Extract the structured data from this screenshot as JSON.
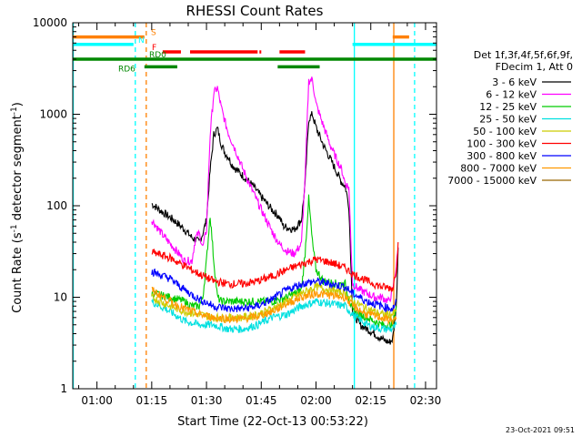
{
  "chart_data": {
    "type": "line",
    "title": "RHESSI Count Rates",
    "xlabel": "Start Time (22-Oct-13 00:53:22)",
    "ylabel_parts": [
      "Count Rate (s",
      "-1",
      " detector segment",
      "-1",
      ")"
    ],
    "y_scale": "log",
    "ylim": [
      1,
      10000
    ],
    "xlim_minutes": [
      53.37,
      153.0
    ],
    "x_ticks": [
      {
        "label": "01:00",
        "min": 60
      },
      {
        "label": "01:15",
        "min": 75
      },
      {
        "label": "01:30",
        "min": 90
      },
      {
        "label": "01:45",
        "min": 105
      },
      {
        "label": "02:00",
        "min": 120
      },
      {
        "label": "02:15",
        "min": 135
      },
      {
        "label": "02:30",
        "min": 150
      }
    ],
    "y_ticks": [
      {
        "label": "1",
        "value": 1
      },
      {
        "label": "10",
        "value": 10
      },
      {
        "label": "100",
        "value": 100
      },
      {
        "label": "1000",
        "value": 1000
      },
      {
        "label": "10000",
        "value": 10000
      }
    ],
    "legend_title": [
      "Det 1f,3f,4f,5f,6f,9f,",
      "FDecim 1, Att 0"
    ],
    "legend_position": "right",
    "timestamp": "23-Oct-2021 09:51",
    "series": [
      {
        "name": "3 - 6 keV",
        "color": "#000000",
        "points": [
          [
            75,
            105
          ],
          [
            78,
            85
          ],
          [
            81,
            70
          ],
          [
            84,
            55
          ],
          [
            86,
            45
          ],
          [
            88,
            40
          ],
          [
            89,
            50
          ],
          [
            90,
            70
          ],
          [
            91,
            240
          ],
          [
            92,
            600
          ],
          [
            93,
            700
          ],
          [
            94,
            480
          ],
          [
            95,
            380
          ],
          [
            96,
            340
          ],
          [
            97,
            280
          ],
          [
            99,
            230
          ],
          [
            101,
            195
          ],
          [
            103,
            160
          ],
          [
            105,
            125
          ],
          [
            108,
            90
          ],
          [
            110,
            75
          ],
          [
            111,
            60
          ],
          [
            114,
            55
          ],
          [
            116,
            70
          ],
          [
            117,
            170
          ],
          [
            118,
            880
          ],
          [
            119,
            1000
          ],
          [
            120,
            720
          ],
          [
            122,
            460
          ],
          [
            124,
            320
          ],
          [
            126,
            220
          ],
          [
            127,
            180
          ],
          [
            128,
            165
          ],
          [
            129,
            100
          ],
          [
            130,
            7
          ],
          [
            132,
            5
          ],
          [
            134,
            4.5
          ],
          [
            136,
            4
          ],
          [
            138,
            3.5
          ],
          [
            140,
            3.2
          ],
          [
            141,
            3.5
          ],
          [
            142,
            8
          ],
          [
            142.5,
            35
          ]
        ]
      },
      {
        "name": "6 - 12 keV",
        "color": "#ff00ff",
        "points": [
          [
            75,
            70
          ],
          [
            78,
            48
          ],
          [
            81,
            35
          ],
          [
            84,
            25
          ],
          [
            86,
            25
          ],
          [
            87,
            45
          ],
          [
            88,
            50
          ],
          [
            89,
            35
          ],
          [
            90,
            55
          ],
          [
            91,
            600
          ],
          [
            92,
            1700
          ],
          [
            93,
            1950
          ],
          [
            94,
            1200
          ],
          [
            95,
            850
          ],
          [
            96,
            620
          ],
          [
            98,
            400
          ],
          [
            100,
            250
          ],
          [
            102,
            165
          ],
          [
            104,
            110
          ],
          [
            106,
            75
          ],
          [
            108,
            52
          ],
          [
            110,
            38
          ],
          [
            112,
            32
          ],
          [
            114,
            30
          ],
          [
            116,
            38
          ],
          [
            117,
            200
          ],
          [
            118,
            2300
          ],
          [
            119,
            2400
          ],
          [
            120,
            1300
          ],
          [
            122,
            750
          ],
          [
            124,
            450
          ],
          [
            126,
            300
          ],
          [
            127,
            250
          ],
          [
            128,
            175
          ],
          [
            129,
            160
          ],
          [
            130,
            14
          ],
          [
            132,
            12
          ],
          [
            134,
            11
          ],
          [
            136,
            10
          ],
          [
            138,
            10
          ],
          [
            140,
            9
          ],
          [
            141,
            12
          ],
          [
            142,
            22
          ],
          [
            142.5,
            35
          ]
        ]
      },
      {
        "name": "12 - 25 keV",
        "color": "#00cc00",
        "points": [
          [
            75,
            11
          ],
          [
            80,
            10
          ],
          [
            84,
            9
          ],
          [
            86,
            8
          ],
          [
            88,
            8
          ],
          [
            89,
            10
          ],
          [
            90,
            25
          ],
          [
            91,
            80
          ],
          [
            92,
            25
          ],
          [
            93,
            10
          ],
          [
            94,
            9
          ],
          [
            98,
            9
          ],
          [
            100,
            9
          ],
          [
            104,
            9
          ],
          [
            108,
            9
          ],
          [
            112,
            10
          ],
          [
            116,
            12
          ],
          [
            117,
            30
          ],
          [
            118,
            120
          ],
          [
            119,
            40
          ],
          [
            120,
            20
          ],
          [
            122,
            15
          ],
          [
            126,
            14
          ],
          [
            128,
            14
          ],
          [
            130,
            7
          ],
          [
            134,
            6
          ],
          [
            138,
            5
          ],
          [
            141,
            5
          ],
          [
            142,
            8
          ]
        ]
      },
      {
        "name": "25 - 50 keV",
        "color": "#00e0e0",
        "points": [
          [
            75,
            9
          ],
          [
            80,
            7
          ],
          [
            84,
            5.5
          ],
          [
            88,
            5
          ],
          [
            92,
            5
          ],
          [
            96,
            4.5
          ],
          [
            100,
            4.5
          ],
          [
            104,
            5
          ],
          [
            108,
            6
          ],
          [
            112,
            6.5
          ],
          [
            116,
            8
          ],
          [
            120,
            9
          ],
          [
            124,
            8.5
          ],
          [
            128,
            8
          ],
          [
            130,
            6.5
          ],
          [
            134,
            5
          ],
          [
            138,
            4.5
          ],
          [
            141,
            4.5
          ],
          [
            142,
            5
          ]
        ]
      },
      {
        "name": "50 - 100 keV",
        "color": "#cccc00",
        "points": [
          [
            75,
            10
          ],
          [
            80,
            8
          ],
          [
            84,
            7
          ],
          [
            88,
            6.5
          ],
          [
            92,
            6
          ],
          [
            96,
            6
          ],
          [
            100,
            6
          ],
          [
            104,
            6.5
          ],
          [
            108,
            7.5
          ],
          [
            112,
            9
          ],
          [
            116,
            11
          ],
          [
            120,
            13
          ],
          [
            124,
            12
          ],
          [
            128,
            11
          ],
          [
            130,
            9
          ],
          [
            134,
            7.5
          ],
          [
            138,
            6.5
          ],
          [
            141,
            6.5
          ],
          [
            142,
            7
          ]
        ]
      },
      {
        "name": "100 - 300 keV",
        "color": "#ff0000",
        "points": [
          [
            75,
            31
          ],
          [
            80,
            27
          ],
          [
            84,
            22
          ],
          [
            88,
            18
          ],
          [
            92,
            15
          ],
          [
            96,
            14
          ],
          [
            100,
            14
          ],
          [
            104,
            15
          ],
          [
            108,
            17
          ],
          [
            112,
            20
          ],
          [
            116,
            23
          ],
          [
            120,
            26
          ],
          [
            124,
            24
          ],
          [
            128,
            21
          ],
          [
            130,
            18
          ],
          [
            134,
            15
          ],
          [
            138,
            13
          ],
          [
            141,
            12.5
          ],
          [
            142,
            20
          ],
          [
            142.5,
            40
          ]
        ]
      },
      {
        "name": "300 - 800 keV",
        "color": "#0000ff",
        "points": [
          [
            75,
            19
          ],
          [
            80,
            16
          ],
          [
            84,
            12
          ],
          [
            88,
            9.5
          ],
          [
            92,
            8
          ],
          [
            96,
            7.5
          ],
          [
            100,
            7.5
          ],
          [
            104,
            8
          ],
          [
            108,
            9.5
          ],
          [
            112,
            12
          ],
          [
            116,
            14
          ],
          [
            120,
            15
          ],
          [
            124,
            14
          ],
          [
            128,
            13
          ],
          [
            130,
            11
          ],
          [
            134,
            9
          ],
          [
            138,
            8
          ],
          [
            141,
            7.5
          ],
          [
            142,
            9
          ]
        ]
      },
      {
        "name": "800 - 7000 keV",
        "color": "#ff9900",
        "points": [
          [
            75,
            12
          ],
          [
            80,
            9
          ],
          [
            84,
            7.5
          ],
          [
            88,
            6.5
          ],
          [
            92,
            6
          ],
          [
            96,
            5.8
          ],
          [
            100,
            5.8
          ],
          [
            104,
            6.2
          ],
          [
            108,
            7
          ],
          [
            112,
            8.5
          ],
          [
            116,
            10
          ],
          [
            120,
            11
          ],
          [
            124,
            10.5
          ],
          [
            128,
            10
          ],
          [
            130,
            8
          ],
          [
            134,
            6.5
          ],
          [
            138,
            6
          ],
          [
            141,
            5.5
          ],
          [
            142,
            6
          ]
        ]
      },
      {
        "name": "7000 - 15000 keV",
        "color": "#996600",
        "points": []
      }
    ],
    "status_bars": [
      {
        "label": "S",
        "color": "#ff8000",
        "level": 7000,
        "segments": [
          [
            53.4,
            73
          ],
          [
            141,
            145.5
          ]
        ]
      },
      {
        "label": "N",
        "color": "#00ffff",
        "level": 5800,
        "segments": [
          [
            53.4,
            70
          ],
          [
            130,
            153
          ]
        ]
      },
      {
        "label": "F",
        "color": "#ff0000",
        "level": 4800,
        "segments": [
          [
            78,
            83
          ],
          [
            85.5,
            104
          ],
          [
            104.5,
            105
          ],
          [
            110,
            117
          ]
        ]
      },
      {
        "label": "RD0",
        "color": "#008800",
        "level": 4000,
        "segments": [
          [
            53.4,
            153
          ]
        ]
      },
      {
        "label": "RD6",
        "color": "#008800",
        "level": 3300,
        "segments": [
          [
            73,
            82
          ],
          [
            109.5,
            121
          ]
        ]
      }
    ],
    "vertical_lines": [
      {
        "min": 53.5,
        "color": "#00ffff",
        "dash": false
      },
      {
        "min": 70.5,
        "color": "#00ffff",
        "dash": true
      },
      {
        "min": 73.5,
        "color": "#ff8000",
        "dash": true
      },
      {
        "min": 130.5,
        "color": "#00ffff",
        "dash": false
      },
      {
        "min": 141.3,
        "color": "#ff8000",
        "dash": false
      },
      {
        "min": 147,
        "color": "#00ffff",
        "dash": true
      }
    ]
  }
}
